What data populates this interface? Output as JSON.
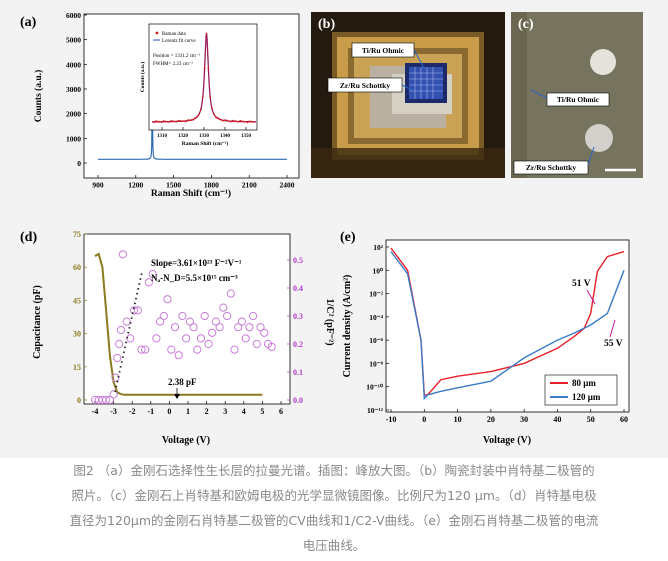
{
  "panels": {
    "a": {
      "letter": "(a)",
      "xlabel": "Raman Shift (cm⁻¹)",
      "ylabel": "Counts (a.u.)",
      "xticks": [
        "900",
        "1200",
        "1500",
        "1800",
        "2100",
        "2400"
      ],
      "yticks": [
        "0",
        "1000",
        "2000",
        "3000",
        "4000",
        "5000",
        "6000"
      ],
      "inset": {
        "ylabel": "Counts (a.u.)",
        "xlabel": "Raman Shift (cm⁻¹)",
        "xticks": [
          "1310",
          "1320",
          "1330",
          "1340",
          "1350"
        ],
        "legend": [
          "Raman data",
          "Lorentz fit curve"
        ],
        "position": "Position = 1331.2 cm⁻¹",
        "fwhm": "FWHM= 2.23 cm⁻¹"
      }
    },
    "b": {
      "letter": "(b)",
      "label1": "Ti/Ru Ohmic",
      "label2": "Zr/Ru Schottky"
    },
    "c": {
      "letter": "(c)",
      "label1": "Ti/Ru Ohmic",
      "label2": "Zr/Ru Schottky"
    },
    "d": {
      "letter": "(d)",
      "slope": "Slope=3.61×10²³ F⁻²V⁻¹",
      "na_nd": "Nₐ-N_D=5.5×10¹⁵ cm⁻³",
      "pf": "2.38 pF",
      "xlabel": "Voltage (V)",
      "ylabel_left": "Capacitance (pF)",
      "ylabel_right": "1/C² (pF⁻²)",
      "xticks": [
        "-4",
        "-3",
        "-2",
        "-1",
        "0",
        "1",
        "2",
        "3",
        "4",
        "5",
        "6"
      ],
      "yticks_left": [
        "0",
        "15",
        "30",
        "45",
        "60",
        "75"
      ],
      "yticks_right": [
        "0.0",
        "0.1",
        "0.2",
        "0.3",
        "0.4",
        "0.5"
      ]
    },
    "e": {
      "letter": "(e)",
      "label_51": "51 V",
      "label_55": "55 V",
      "xlabel": "Voltage (V)",
      "ylabel": "Current density (A/cm²)",
      "xticks": [
        "-10",
        "0",
        "10",
        "20",
        "30",
        "40",
        "50",
        "60"
      ],
      "yticks": [
        "10²",
        "10⁰",
        "10⁻²",
        "10⁻⁴",
        "10⁻⁶",
        "10⁻⁸",
        "10⁻¹⁰",
        "10⁻¹²"
      ],
      "legend": [
        "80 μm",
        "120 μm"
      ]
    }
  },
  "colors": {
    "raman": "#2f6eb5",
    "fit": "#9b1b5a",
    "cap": "#8c7a1e",
    "invc2": "#c87cd8",
    "red": "#e8202a",
    "blue": "#3a7bc8",
    "pink": "#c8189a"
  },
  "chart_data": [
    {
      "type": "line",
      "title": "",
      "xlabel": "Raman Shift (cm⁻¹)",
      "ylabel": "Counts (a.u.)",
      "xlim": [
        900,
        2400
      ],
      "ylim": [
        0,
        6000
      ],
      "series": [
        {
          "x": [
            900,
            1100,
            1250,
            1310,
            1325,
            1331,
            1337,
            1350,
            1500,
            1800,
            2100,
            2400
          ],
          "y": [
            150,
            150,
            150,
            160,
            400,
            5500,
            400,
            160,
            150,
            150,
            150,
            150
          ]
        }
      ]
    },
    {
      "type": "line",
      "xlabel": "Voltage (V)",
      "ylabel": "Current density (A/cm²)",
      "xlim": [
        -10,
        60
      ],
      "series": [
        {
          "name": "80 μm",
          "x": [
            -10,
            -5,
            -1,
            0,
            1,
            5,
            10,
            20,
            30,
            40,
            45,
            48,
            50,
            52,
            55,
            60
          ],
          "y": [
            80,
            1,
            1e-06,
            2e-11,
            2e-11,
            4e-10,
            8e-10,
            2e-09,
            1e-08,
            2e-07,
            2e-06,
            1e-05,
            0.0002,
            0.8,
            15,
            40
          ]
        },
        {
          "name": "120 μm",
          "x": [
            -10,
            -5,
            -1,
            0,
            1,
            5,
            10,
            20,
            30,
            40,
            45,
            50,
            55,
            60
          ],
          "y": [
            40,
            0.5,
            1e-06,
            1e-11,
            2e-11,
            4e-11,
            8e-11,
            3e-10,
            3e-08,
            1e-06,
            4e-06,
            2e-05,
            0.0002,
            1
          ]
        }
      ]
    }
  ],
  "caption": [
    "图2 （a）金刚石选择性生长层的拉曼光谱。插图：峰放大图。（b）陶瓷封装中肖特基二极管的",
    "照片。（c）金刚石上肖特基和欧姆电极的光学显微镜图像。比例尺为120 μm。（d）肖特基电极",
    "直径为120μm的金刚石肖特基二极管的CV曲线和1/C2-V曲线。（e）金刚石肖特基二极管的电流",
    "电压曲线。"
  ]
}
